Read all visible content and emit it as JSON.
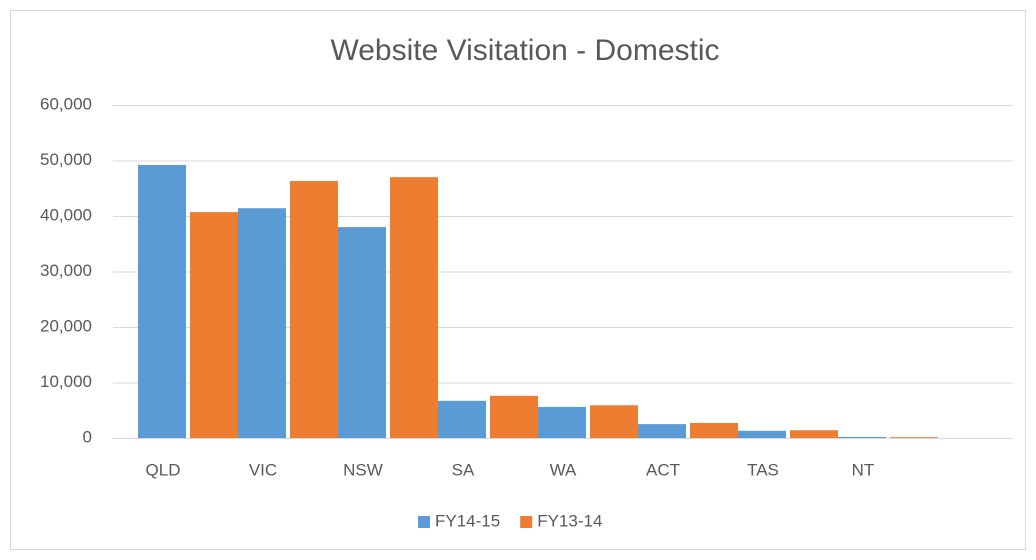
{
  "chart_data": {
    "type": "bar",
    "title": "Website Visitation - Domestic",
    "categories": [
      "QLD",
      "VIC",
      "NSW",
      "SA",
      "WA",
      "ACT",
      "TAS",
      "NT",
      null
    ],
    "series": [
      {
        "name": "FY14-15",
        "color": "#5b9bd5",
        "values": [
          49200,
          41400,
          38000,
          6700,
          5600,
          2500,
          1300,
          200,
          null
        ]
      },
      {
        "name": "FY13-14",
        "color": "#ed7d31",
        "values": [
          40700,
          46300,
          47000,
          7600,
          5900,
          2700,
          1400,
          150,
          null
        ]
      }
    ],
    "ylim": [
      0,
      60000
    ],
    "yticks": [
      0,
      {
        "value": 10000,
        "label": "10,000"
      },
      {
        "value": 20000,
        "label": "20,000"
      },
      {
        "value": 30000,
        "label": "30,000"
      },
      {
        "value": 40000,
        "label": "40,000"
      },
      {
        "value": 50000,
        "label": "50,000"
      },
      {
        "value": 60000,
        "label": "60,000"
      }
    ],
    "grid": true,
    "legend": "bottom"
  }
}
